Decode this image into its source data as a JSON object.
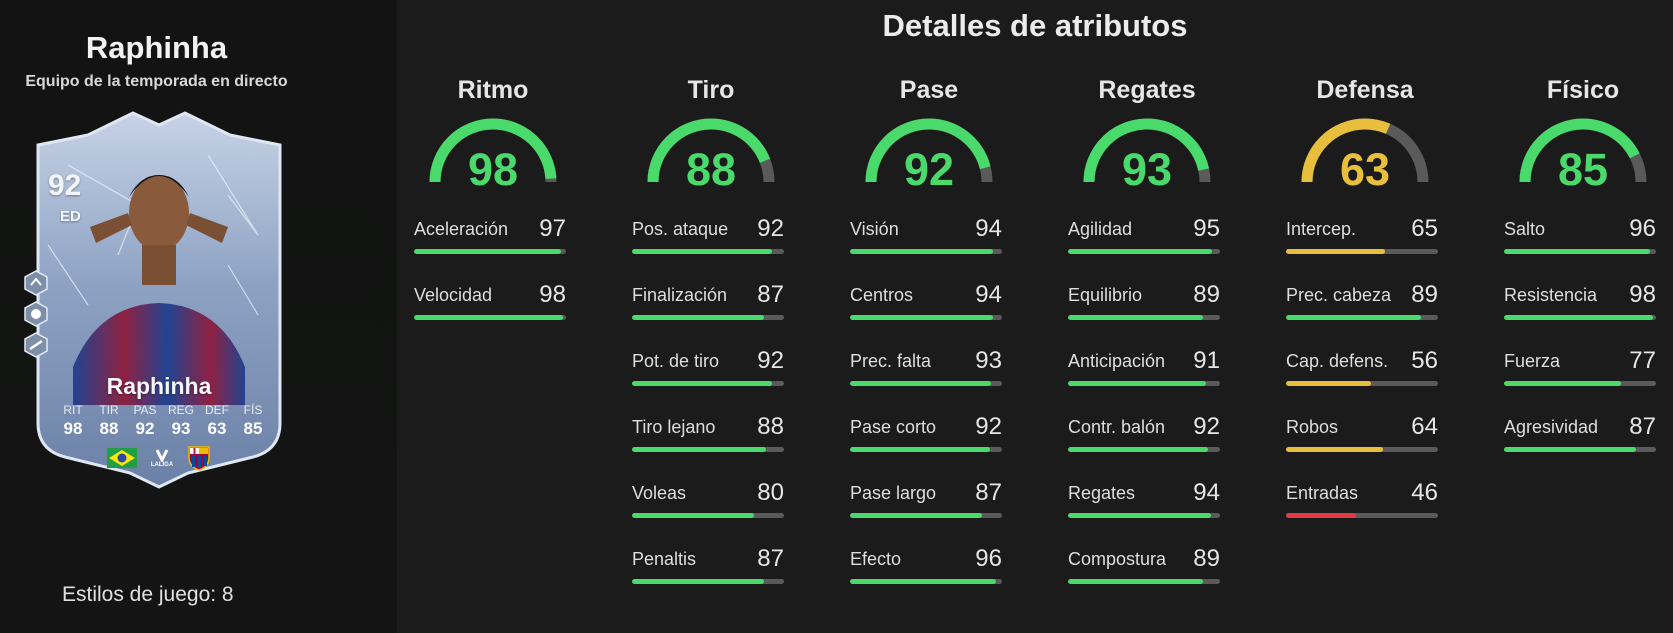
{
  "player": {
    "name": "Raphinha",
    "subtitle": "Equipo de la temporada en directo",
    "playstyles_label": "Estilos de juego: 8"
  },
  "card": {
    "rating": "92",
    "position": "ED",
    "name": "Raphinha",
    "stats": [
      {
        "label": "RIT",
        "value": "98"
      },
      {
        "label": "TIR",
        "value": "88"
      },
      {
        "label": "PAS",
        "value": "92"
      },
      {
        "label": "REG",
        "value": "93"
      },
      {
        "label": "DEF",
        "value": "63"
      },
      {
        "label": "FÍS",
        "value": "85"
      }
    ],
    "league_text": "LALIGA",
    "side_icons": [
      "playstyle-icon-1",
      "playstyle-icon-2",
      "playstyle-icon-3"
    ]
  },
  "main": {
    "title": "Detalles de atributos"
  },
  "colors": {
    "green": "#4ad96b",
    "yellow": "#e8bf3c",
    "red": "#e33a44",
    "track": "#5a5a5a"
  },
  "categories": [
    {
      "name": "Ritmo",
      "value": 98,
      "attributes": [
        {
          "name": "Aceleración",
          "value": 97
        },
        {
          "name": "Velocidad",
          "value": 98
        }
      ]
    },
    {
      "name": "Tiro",
      "value": 88,
      "attributes": [
        {
          "name": "Pos. ataque",
          "value": 92
        },
        {
          "name": "Finalización",
          "value": 87
        },
        {
          "name": "Pot. de tiro",
          "value": 92
        },
        {
          "name": "Tiro lejano",
          "value": 88
        },
        {
          "name": "Voleas",
          "value": 80
        },
        {
          "name": "Penaltis",
          "value": 87
        }
      ]
    },
    {
      "name": "Pase",
      "value": 92,
      "attributes": [
        {
          "name": "Visión",
          "value": 94
        },
        {
          "name": "Centros",
          "value": 94
        },
        {
          "name": "Prec. falta",
          "value": 93
        },
        {
          "name": "Pase corto",
          "value": 92
        },
        {
          "name": "Pase largo",
          "value": 87
        },
        {
          "name": "Efecto",
          "value": 96
        }
      ]
    },
    {
      "name": "Regates",
      "value": 93,
      "attributes": [
        {
          "name": "Agilidad",
          "value": 95
        },
        {
          "name": "Equilibrio",
          "value": 89
        },
        {
          "name": "Anticipación",
          "value": 91
        },
        {
          "name": "Contr. balón",
          "value": 92
        },
        {
          "name": "Regates",
          "value": 94
        },
        {
          "name": "Compostura",
          "value": 89
        }
      ]
    },
    {
      "name": "Defensa",
      "value": 63,
      "attributes": [
        {
          "name": "Intercep.",
          "value": 65
        },
        {
          "name": "Prec. cabeza",
          "value": 89
        },
        {
          "name": "Cap. defens.",
          "value": 56
        },
        {
          "name": "Robos",
          "value": 64
        },
        {
          "name": "Entradas",
          "value": 46
        }
      ]
    },
    {
      "name": "Físico",
      "value": 85,
      "attributes": [
        {
          "name": "Salto",
          "value": 96
        },
        {
          "name": "Resistencia",
          "value": 98
        },
        {
          "name": "Fuerza",
          "value": 77
        },
        {
          "name": "Agresividad",
          "value": 87
        }
      ]
    }
  ]
}
